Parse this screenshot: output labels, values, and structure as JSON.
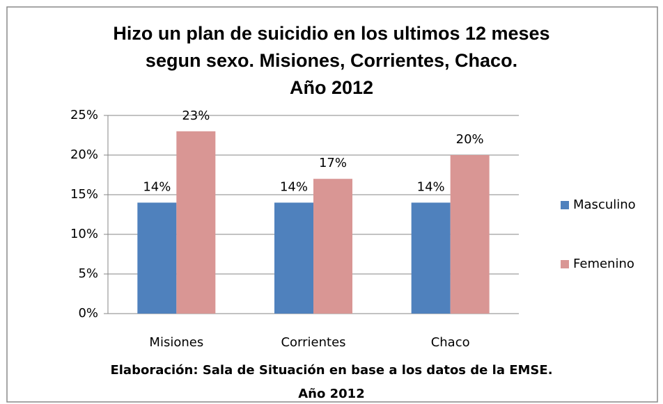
{
  "chart_data": {
    "type": "bar",
    "title": [
      "Hizo un plan de suicidio en los ultimos 12 meses",
      "segun sexo. Misiones, Corrientes, Chaco.",
      "Año 2012"
    ],
    "categories": [
      "Misiones",
      "Corrientes",
      "Chaco"
    ],
    "series": [
      {
        "name": "Masculino",
        "color": "#4f81bd",
        "values": [
          14,
          14,
          14
        ],
        "value_labels": [
          "14%",
          "14%",
          "14%"
        ]
      },
      {
        "name": "Femenino",
        "color": "#d99694",
        "values": [
          23,
          17,
          20
        ],
        "value_labels": [
          "23%",
          "17%",
          "20%"
        ]
      }
    ],
    "ylim": [
      0,
      25
    ],
    "yticks": [
      {
        "value": 0,
        "label": "0%"
      },
      {
        "value": 5,
        "label": "5%"
      },
      {
        "value": 10,
        "label": "10%"
      },
      {
        "value": 15,
        "label": "15%"
      },
      {
        "value": 20,
        "label": "20%"
      },
      {
        "value": 25,
        "label": "25%"
      }
    ],
    "grid": true,
    "legend": "right",
    "caption": [
      "Elaboración: Sala de Situación en base a los datos de la EMSE.",
      "Año 2012"
    ]
  }
}
